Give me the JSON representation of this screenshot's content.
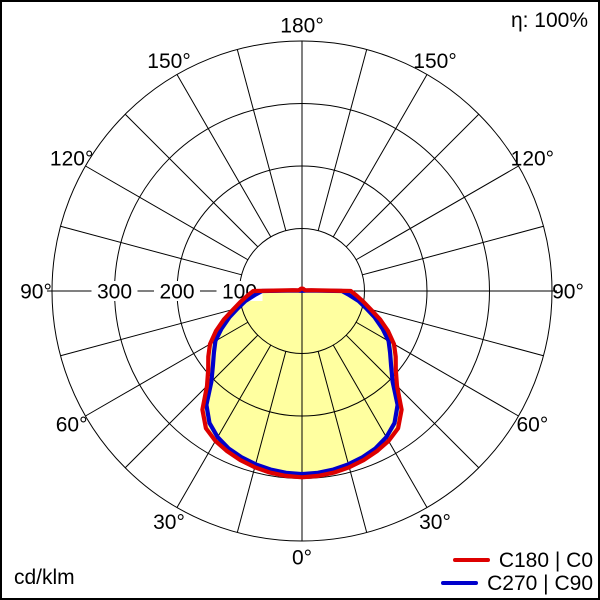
{
  "page": {
    "eta_label": "η: 100%",
    "unit_label": "cd/klm"
  },
  "legend": {
    "entries": [
      {
        "label": "C180 | C0",
        "color": "#dd0000"
      },
      {
        "label": "C270 | C90",
        "color": "#0000cc"
      }
    ]
  },
  "chart_data": {
    "type": "polar_line",
    "subtype": "luminous-intensity-distribution",
    "unit": "cd/klm",
    "efficiency": "η: 100%",
    "angle_tick_labels": [
      "0°",
      "30°",
      "60°",
      "90°",
      "120°",
      "150°",
      "180°"
    ],
    "angle_tick_step_deg": 30,
    "grid_spoke_step_deg": 15,
    "radial_circles": [
      100,
      200,
      300,
      400
    ],
    "radial_tick_labels": [
      {
        "value": 100,
        "label": "100"
      },
      {
        "value": 200,
        "label": "200"
      },
      {
        "value": 300,
        "label": "300"
      }
    ],
    "rmax": 400,
    "grid_on": true,
    "symmetric_mirror": true,
    "fill_color": "#ffffa0",
    "legend_position": "bottom-right",
    "gamma_deg": [
      0,
      5,
      10,
      15,
      20,
      25,
      30,
      35,
      40,
      45,
      50,
      55,
      60,
      65,
      70,
      75,
      80,
      85,
      90,
      95,
      100,
      120,
      140,
      160,
      180
    ],
    "series": [
      {
        "name": "C180 | C0",
        "color": "#dd0000",
        "values": [
          298,
          297,
          295,
          292,
          288,
          283,
          277,
          268,
          248,
          215,
          196,
          183,
          170,
          152,
          133,
          114,
          100,
          88,
          78,
          15,
          6,
          4,
          4,
          4,
          4
        ]
      },
      {
        "name": "C270 | C90",
        "color": "#0000cc",
        "values": [
          293,
          292,
          290,
          287,
          283,
          278,
          270,
          258,
          238,
          205,
          186,
          172,
          160,
          142,
          124,
          106,
          92,
          76,
          64,
          10,
          2,
          1,
          1,
          1,
          1
        ]
      }
    ]
  }
}
